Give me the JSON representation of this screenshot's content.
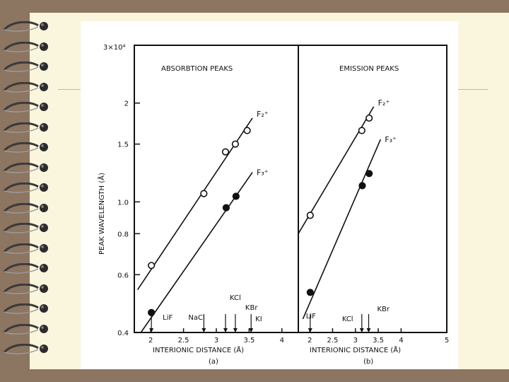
{
  "colors": {
    "background": "#8c7561",
    "page": "#faf6dd",
    "ink": "#111111"
  },
  "figure": {
    "y_axis_label": "PEAK WAVELENGTH (Å)",
    "x_axis_label": "INTERIONIC DISTANCE (Å)",
    "y_top_label": "3×10⁴"
  },
  "chart_data": [
    {
      "type": "scatter",
      "title": "ABSORBTION PEAKS",
      "panel_label": "(a)",
      "xlabel": "INTERIONIC DISTANCE (Å)",
      "ylabel": "PEAK WAVELENGTH (Å)",
      "yscale": "log",
      "xlim": [
        1.75,
        4.25
      ],
      "ylim": [
        0.4,
        3.0
      ],
      "x_ticks": [
        "2",
        "2.5",
        "3",
        "3.5",
        "4"
      ],
      "y_ticks": [
        "0.4",
        "0.6",
        "0.8",
        "1.0",
        "1.5",
        "2"
      ],
      "series": [
        {
          "name": "F₂⁺",
          "marker": "open-circle",
          "points": [
            [
              2.01,
              0.64
            ],
            [
              2.81,
              1.06
            ],
            [
              3.14,
              1.42
            ],
            [
              3.29,
              1.5
            ],
            [
              3.47,
              1.65
            ]
          ],
          "fit_line": [
            [
              1.8,
              0.54
            ],
            [
              3.55,
              1.8
            ]
          ]
        },
        {
          "name": "F₃⁺",
          "marker": "filled-circle",
          "points": [
            [
              2.01,
              0.46
            ],
            [
              3.15,
              0.96
            ],
            [
              3.3,
              1.04
            ]
          ],
          "fit_line": [
            [
              1.85,
              0.4
            ],
            [
              3.55,
              1.23
            ]
          ]
        }
      ],
      "annotations": [
        "LiF",
        "NaCl",
        "KCl",
        "KBr",
        "KI"
      ]
    },
    {
      "type": "scatter",
      "title": "EMISSION PEAKS",
      "panel_label": "(b)",
      "xlabel": "INTERIONIC DISTANCE (Å)",
      "yscale": "log",
      "xlim": [
        1.75,
        5.0
      ],
      "ylim": [
        0.4,
        3.0
      ],
      "x_ticks": [
        "2",
        "2.5",
        "3",
        "3.5",
        "4",
        "5"
      ],
      "series": [
        {
          "name": "F₂⁺",
          "marker": "open-circle",
          "points": [
            [
              2.01,
              0.91
            ],
            [
              3.14,
              1.65
            ],
            [
              3.3,
              1.8
            ]
          ],
          "fit_line": [
            [
              1.75,
              0.8
            ],
            [
              3.4,
              1.95
            ]
          ]
        },
        {
          "name": "F₃⁺",
          "marker": "filled-circle",
          "points": [
            [
              2.01,
              0.53
            ],
            [
              3.15,
              1.12
            ],
            [
              3.3,
              1.22
            ]
          ],
          "fit_line": [
            [
              1.85,
              0.44
            ],
            [
              3.55,
              1.55
            ]
          ]
        }
      ],
      "annotations": [
        "LiF",
        "KCl",
        "KBr"
      ]
    }
  ]
}
